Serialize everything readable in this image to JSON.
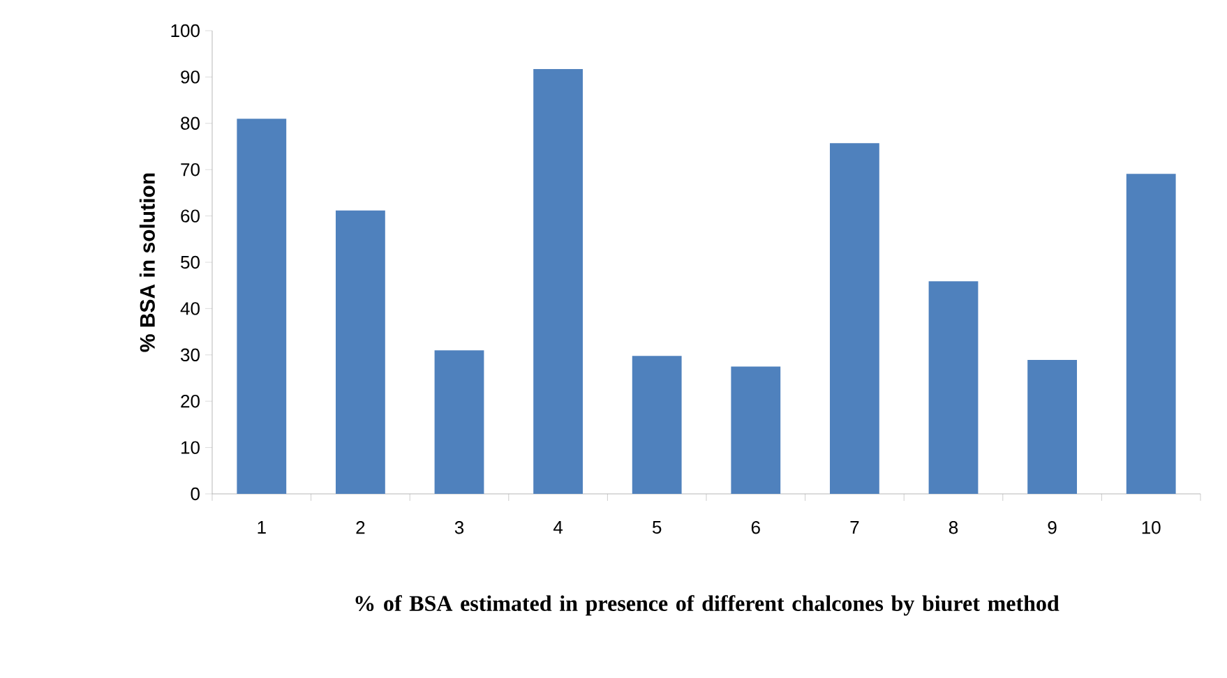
{
  "chart_data": {
    "type": "bar",
    "xlabel": "% of BSA estimated in presence of different chalcones by biuret method",
    "ylabel": "% BSA in solution",
    "categories": [
      "1",
      "2",
      "3",
      "4",
      "5",
      "6",
      "7",
      "8",
      "9",
      "10"
    ],
    "values": [
      81,
      61.2,
      31,
      91.7,
      29.8,
      27.5,
      75.7,
      45.9,
      28.9,
      69.1
    ],
    "color": "#4f81bd",
    "ylim": [
      0,
      100
    ],
    "yticks": [
      0,
      10,
      20,
      30,
      40,
      50,
      60,
      70,
      80,
      90,
      100
    ],
    "grid": false
  }
}
